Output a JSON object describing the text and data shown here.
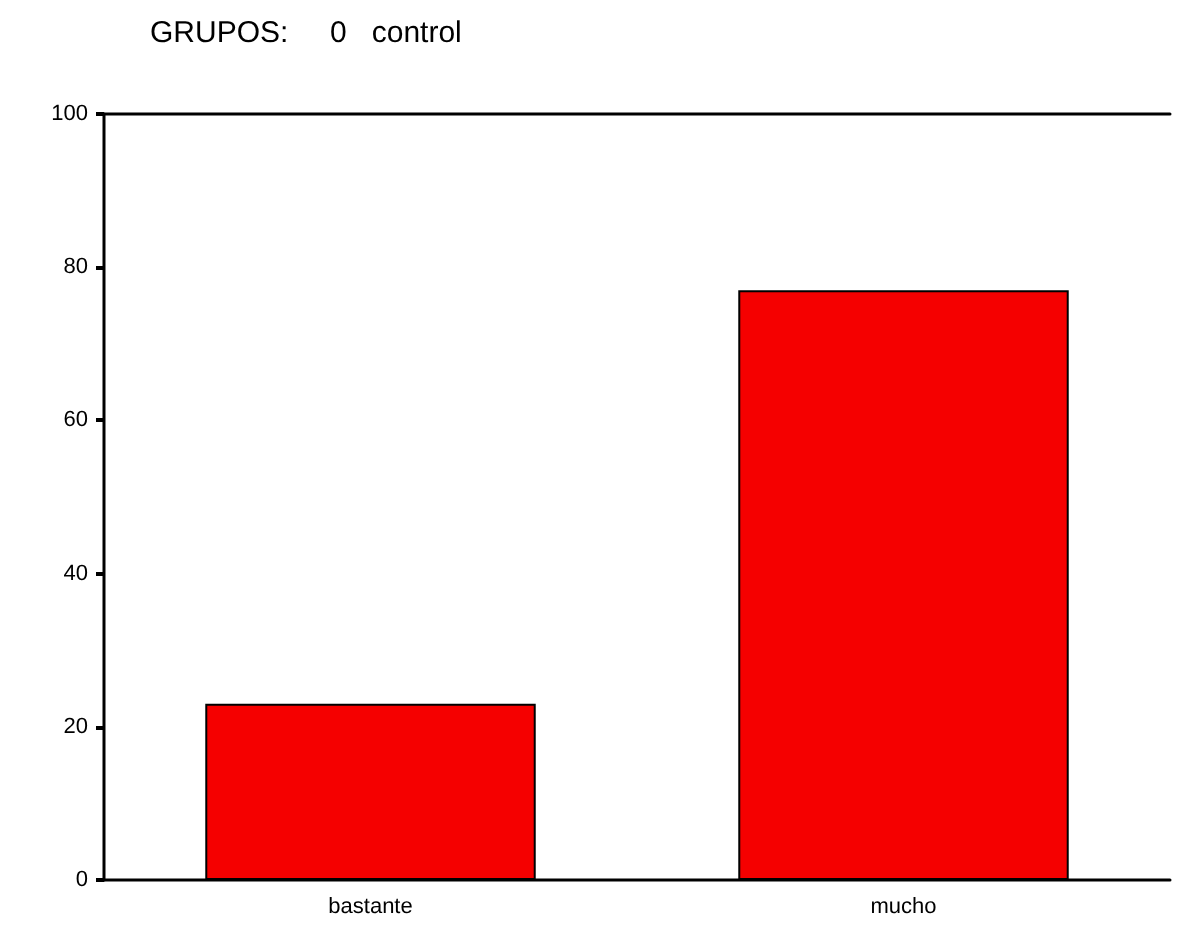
{
  "chart_data": {
    "type": "bar",
    "title": "GRUPOS:     0   control",
    "categories": [
      "bastante",
      "mucho"
    ],
    "values": [
      23,
      77
    ],
    "color": "#f50000",
    "ylim": [
      0,
      100
    ],
    "yticks": [
      0,
      20,
      40,
      60,
      80,
      100
    ]
  }
}
